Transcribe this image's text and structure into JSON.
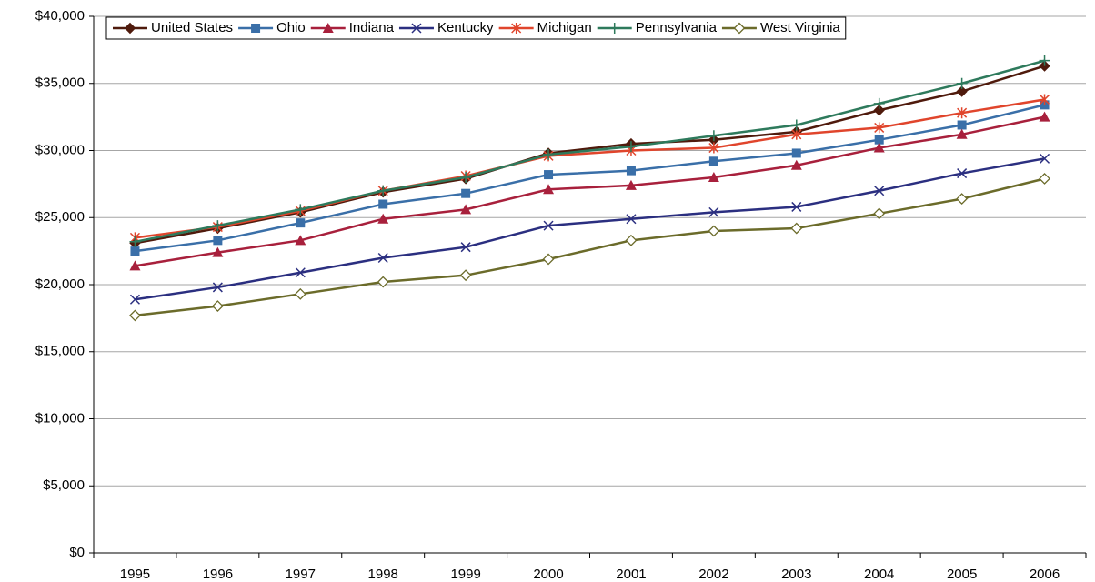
{
  "chart_data": {
    "type": "line",
    "categories": [
      "1995",
      "1996",
      "1997",
      "1998",
      "1999",
      "2000",
      "2001",
      "2002",
      "2003",
      "2004",
      "2005",
      "2006"
    ],
    "ylim": [
      0,
      40000
    ],
    "yticks": [
      {
        "value": 0,
        "label": "$0"
      },
      {
        "value": 5000,
        "label": "$5,000"
      },
      {
        "value": 10000,
        "label": "$10,000"
      },
      {
        "value": 15000,
        "label": "$15,000"
      },
      {
        "value": 20000,
        "label": "$20,000"
      },
      {
        "value": 25000,
        "label": "$25,000"
      },
      {
        "value": 30000,
        "label": "$30,000"
      },
      {
        "value": 35000,
        "label": "$35,000"
      },
      {
        "value": 40000,
        "label": "$40,000"
      }
    ],
    "grid": true,
    "legend": "top",
    "series": [
      {
        "name": "United States",
        "color": "#4f1a0c",
        "marker": "diamond",
        "values": [
          23100,
          24200,
          25400,
          26900,
          27900,
          29800,
          30500,
          30800,
          31400,
          33000,
          34400,
          36300
        ]
      },
      {
        "name": "Ohio",
        "color": "#3a6fa8",
        "marker": "square",
        "values": [
          22500,
          23300,
          24600,
          26000,
          26800,
          28200,
          28500,
          29200,
          29800,
          30800,
          31900,
          33400
        ]
      },
      {
        "name": "Indiana",
        "color": "#a8203c",
        "marker": "triangle",
        "values": [
          21400,
          22400,
          23300,
          24900,
          25600,
          27100,
          27400,
          28000,
          28900,
          30200,
          31200,
          32500
        ]
      },
      {
        "name": "Kentucky",
        "color": "#2b2f80",
        "marker": "x",
        "values": [
          18900,
          19800,
          20900,
          22000,
          22800,
          24400,
          24900,
          25400,
          25800,
          27000,
          28300,
          29400
        ]
      },
      {
        "name": "Michigan",
        "color": "#e0452c",
        "marker": "asterisk",
        "values": [
          23500,
          24300,
          25500,
          27000,
          28100,
          29600,
          30000,
          30200,
          31200,
          31700,
          32800,
          33800
        ]
      },
      {
        "name": "Pennsylvania",
        "color": "#2e7a5c",
        "marker": "plus",
        "values": [
          23200,
          24400,
          25600,
          27000,
          28000,
          29700,
          30300,
          31100,
          31900,
          33500,
          35000,
          36700
        ]
      },
      {
        "name": "West Virginia",
        "color": "#6b6b2a",
        "marker": "diamond-open",
        "values": [
          17700,
          18400,
          19300,
          20200,
          20700,
          21900,
          23300,
          24000,
          24200,
          25300,
          26400,
          27900
        ]
      }
    ]
  }
}
